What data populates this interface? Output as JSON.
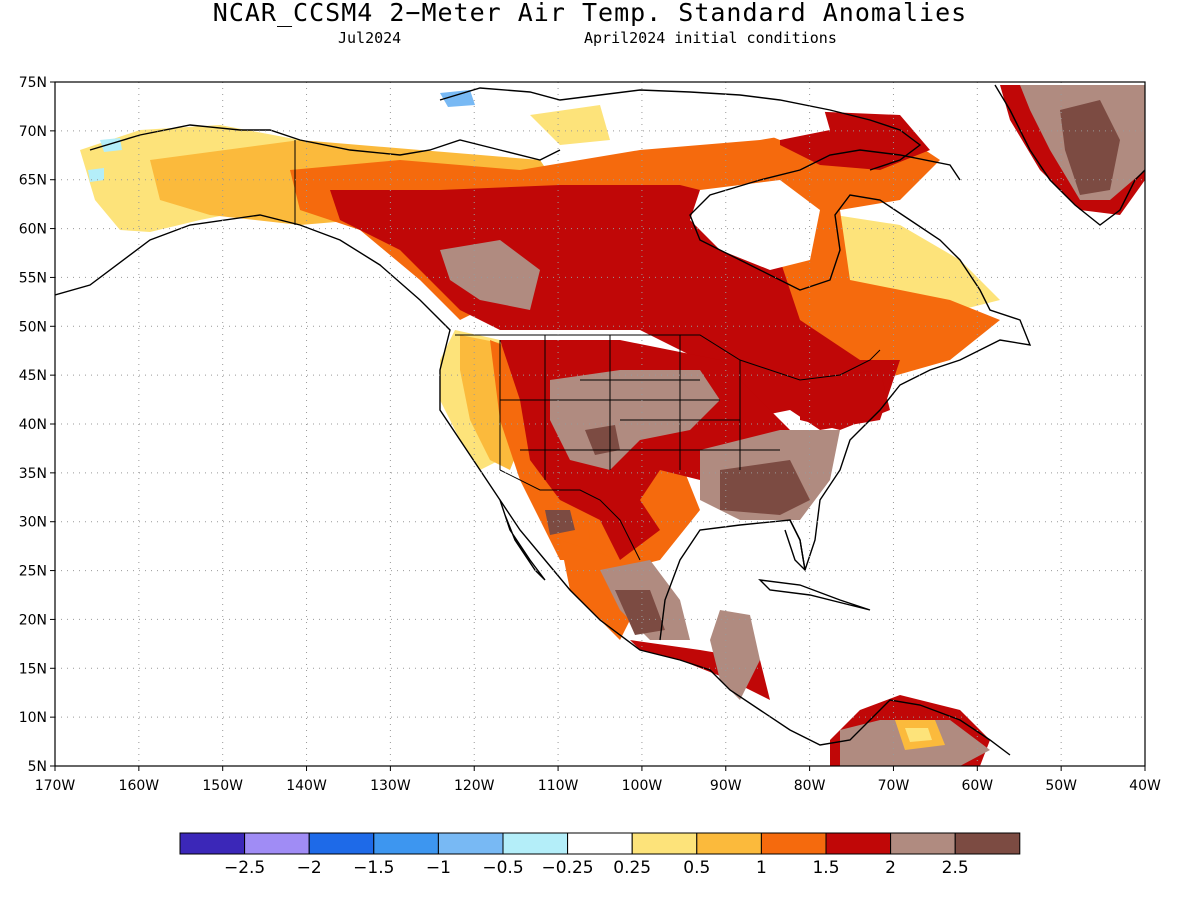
{
  "title": "NCAR_CCSM4 2−Meter Air Temp. Standard Anomalies",
  "subtitle_left": "Jul2024",
  "subtitle_right": "April2024 initial conditions",
  "axes": {
    "lat_labels": [
      "75N",
      "70N",
      "65N",
      "60N",
      "55N",
      "50N",
      "45N",
      "40N",
      "35N",
      "30N",
      "25N",
      "20N",
      "15N",
      "10N",
      "5N"
    ],
    "lon_labels": [
      "170W",
      "160W",
      "150W",
      "140W",
      "130W",
      "120W",
      "110W",
      "100W",
      "90W",
      "80W",
      "70W",
      "60W",
      "50W",
      "40W"
    ],
    "lat_range": [
      5,
      75
    ],
    "lon_range": [
      -170,
      -40
    ],
    "grid": "dotted"
  },
  "colorbar": {
    "colors": [
      "#3b27b8",
      "#a08cf5",
      "#1e6ae8",
      "#3d96f0",
      "#78b9f4",
      "#b4eef9",
      "#ffffff",
      "#fde37a",
      "#fbba3c",
      "#f56a0d",
      "#c00707",
      "#b08b80",
      "#7c4b42"
    ],
    "labels": [
      "−2.5",
      "−2",
      "−1.5",
      "−1",
      "−0.5",
      "−0.25",
      "0.25",
      "0.5",
      "1",
      "1.5",
      "2",
      "2.5"
    ]
  },
  "colors": {
    "land_outline": "#000000",
    "grid": "#999999"
  }
}
